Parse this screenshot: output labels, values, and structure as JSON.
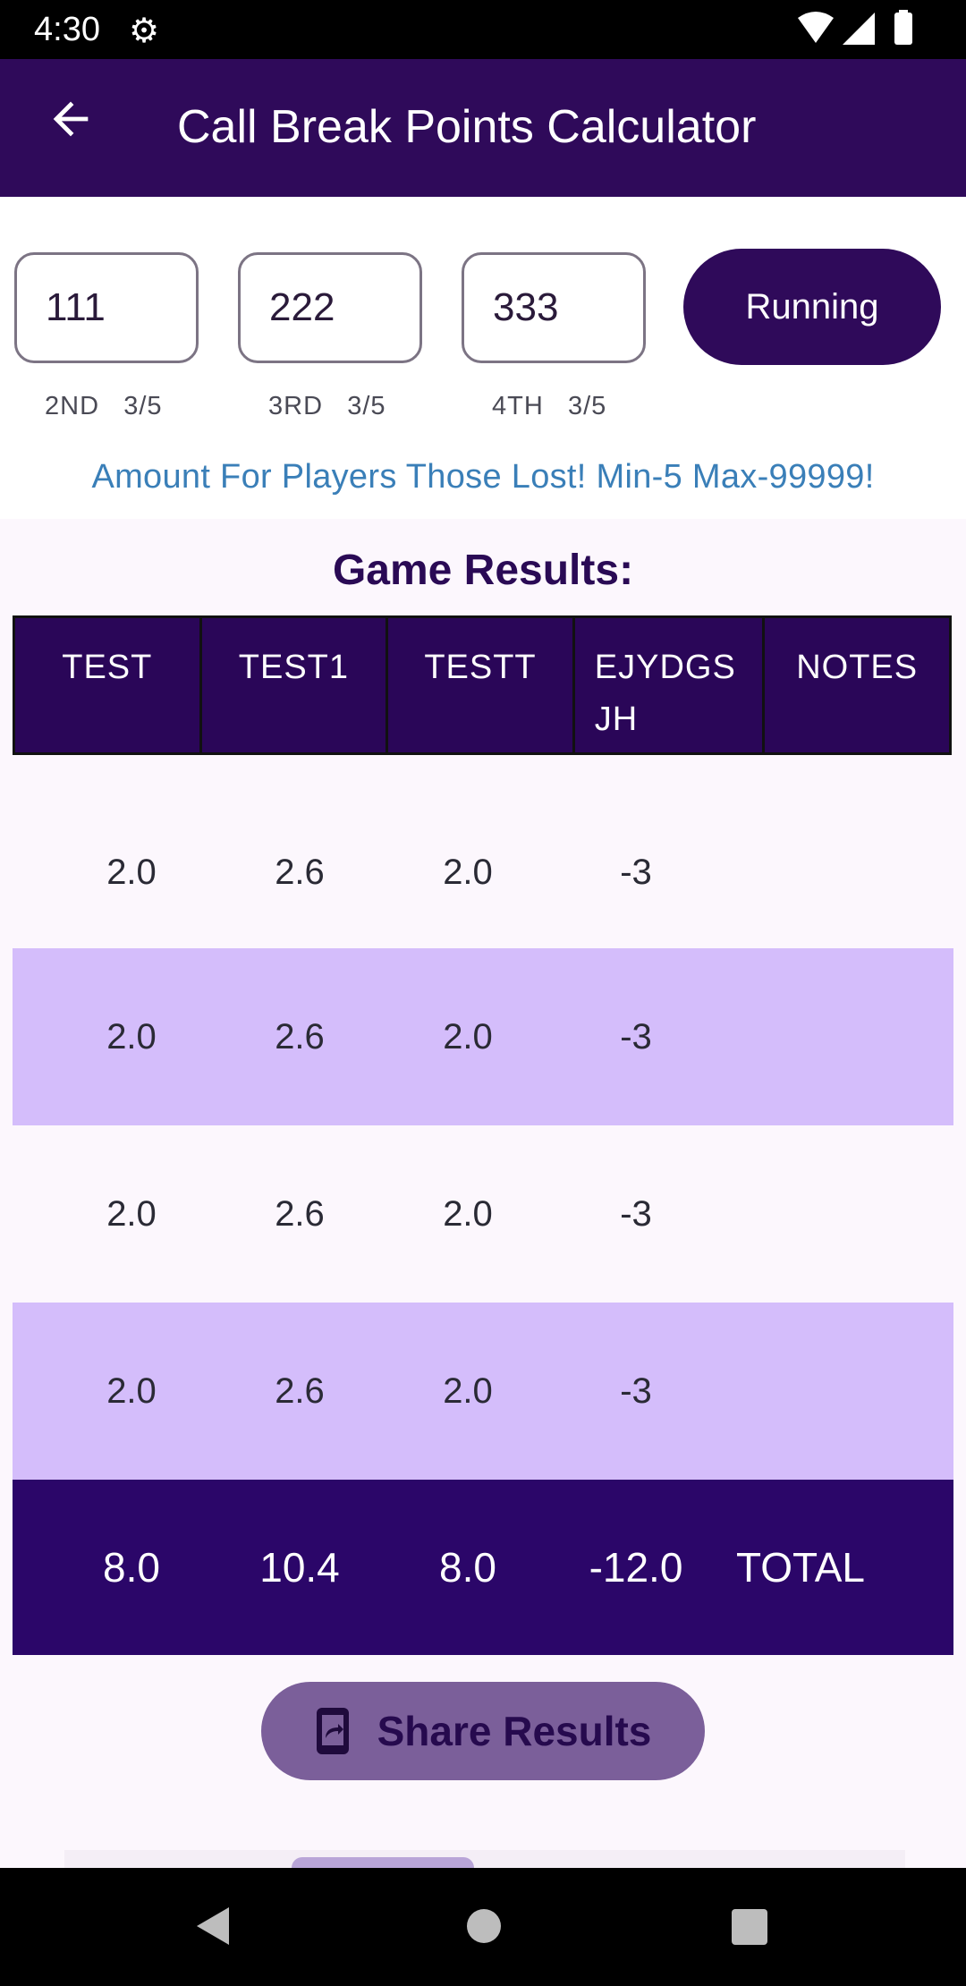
{
  "status_bar": {
    "time": "4:30",
    "settings_icon": "gear-icon",
    "wifi_icon": "wifi-icon",
    "signal_icon": "signal-icon",
    "battery_icon": "battery-icon"
  },
  "app_bar": {
    "title": "Call Break Points Calculator",
    "back_icon": "arrow-left-icon"
  },
  "amounts": [
    {
      "value": "111",
      "position": "2ND",
      "ratio": "3/5"
    },
    {
      "value": "222",
      "position": "3RD",
      "ratio": "3/5"
    },
    {
      "value": "333",
      "position": "4TH",
      "ratio": "3/5"
    }
  ],
  "running_button": "Running",
  "hint": "Amount For Players Those Lost! Min-5 Max-99999!",
  "results": {
    "title": "Game Results:",
    "headers": [
      "TEST",
      "TEST1",
      "TESTT",
      "EJYDGS JH",
      "NOTES"
    ],
    "rows": [
      [
        "2.0",
        "2.6",
        "2.0",
        "-3",
        ""
      ],
      [
        "2.0",
        "2.6",
        "2.0",
        "-3",
        ""
      ],
      [
        "2.0",
        "2.6",
        "2.0",
        "-3",
        ""
      ],
      [
        "2.0",
        "2.6",
        "2.0",
        "-3",
        ""
      ]
    ],
    "total": [
      "8.0",
      "10.4",
      "8.0",
      "-12.0",
      "TOTAL"
    ]
  },
  "share_button": {
    "label": "Share Results",
    "icon": "share-phone-icon"
  },
  "nav_bar": {
    "back": "nav-back-icon",
    "home": "nav-home-icon",
    "recents": "nav-recents-icon"
  },
  "colors": {
    "primary": "#2f0a5a",
    "row_alt": "#d4bdfb",
    "hint": "#3a7fb8",
    "share_bg": "#7b5f9a"
  }
}
